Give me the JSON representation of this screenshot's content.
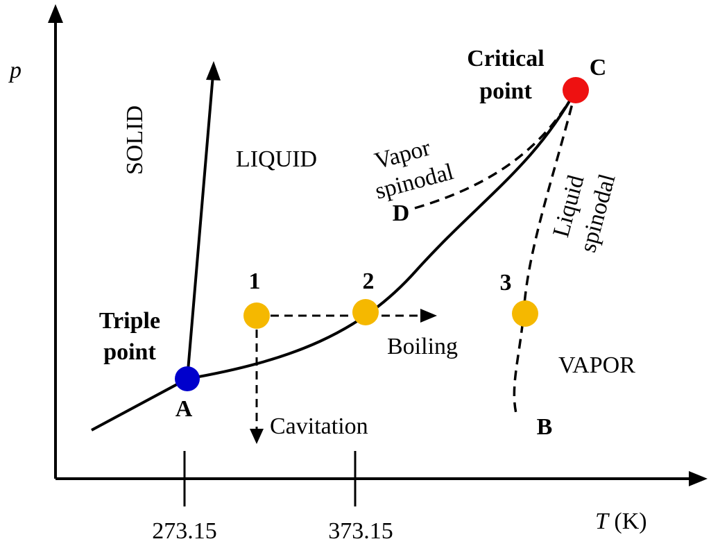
{
  "axes": {
    "y_label": "p",
    "x_label_var": "T",
    "x_label_unit": " (K)",
    "x_ticks": [
      "273.15",
      "373.15"
    ]
  },
  "regions": {
    "solid": "SOLID",
    "liquid": "LIQUID",
    "vapor": "VAPOR"
  },
  "points": {
    "triple_line1": "Triple",
    "triple_line2": "point",
    "critical_line1": "Critical",
    "critical_line2": "point",
    "A": "A",
    "B": "B",
    "C": "C",
    "D": "D",
    "state1": "1",
    "state2": "2",
    "state3": "3"
  },
  "curves": {
    "vapor_spinodal_line1": "Vapor",
    "vapor_spinodal_line2": "spinodal",
    "liquid_spinodal_line1": "Liquid",
    "liquid_spinodal_line2": "spinodal"
  },
  "processes": {
    "boiling": "Boiling",
    "cavitation": "Cavitation"
  },
  "colors": {
    "triple_point": "#0000cc",
    "critical_point": "#ee1111",
    "state_points": "#f5b800",
    "lines": "#000000"
  }
}
